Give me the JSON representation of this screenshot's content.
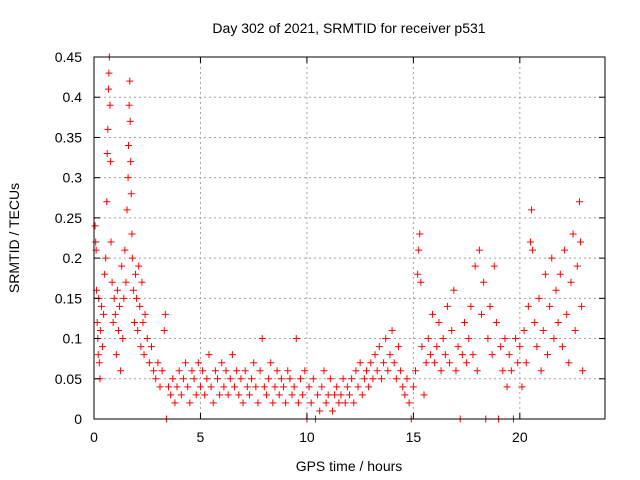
{
  "chart_data": {
    "type": "scatter",
    "title": "Day 302 of 2021, SRMTID for receiver p531",
    "xlabel": "GPS time / hours",
    "ylabel": "SRMTID / TECUs",
    "xlim": [
      0,
      24
    ],
    "ylim": [
      0,
      0.45
    ],
    "grid": true,
    "marker": "+",
    "color": "#ff0000",
    "x_ticks": [
      0,
      5,
      10,
      15,
      20
    ],
    "x_tick_labels": [
      "0",
      "5",
      "10",
      "15",
      "20"
    ],
    "y_ticks": [
      0,
      0.05,
      0.1,
      0.15,
      0.2,
      0.25,
      0.3,
      0.35,
      0.4,
      0.45
    ],
    "y_tick_labels": [
      "0",
      "0.05",
      "0.1",
      "0.15",
      "0.2",
      "0.25",
      "0.3",
      "0.35",
      "0.4",
      "0.45"
    ],
    "series": [
      {
        "name": "SRMTID",
        "points": [
          [
            0.05,
            0.24
          ],
          [
            0.08,
            0.22
          ],
          [
            0.1,
            0.21
          ],
          [
            0.12,
            0.16
          ],
          [
            0.15,
            0.12
          ],
          [
            0.18,
            0.1
          ],
          [
            0.2,
            0.08
          ],
          [
            0.22,
            0.15
          ],
          [
            0.25,
            0.07
          ],
          [
            0.28,
            0.05
          ],
          [
            0.3,
            0.11
          ],
          [
            0.35,
            0.14
          ],
          [
            0.4,
            0.09
          ],
          [
            0.45,
            0.13
          ],
          [
            0.5,
            0.18
          ],
          [
            0.55,
            0.2
          ],
          [
            0.6,
            0.27
          ],
          [
            0.62,
            0.33
          ],
          [
            0.65,
            0.36
          ],
          [
            0.68,
            0.41
          ],
          [
            0.7,
            0.43
          ],
          [
            0.72,
            0.45
          ],
          [
            0.75,
            0.39
          ],
          [
            0.78,
            0.32
          ],
          [
            0.8,
            0.22
          ],
          [
            0.85,
            0.17
          ],
          [
            0.9,
            0.12
          ],
          [
            0.95,
            0.15
          ],
          [
            1.0,
            0.13
          ],
          [
            1.05,
            0.08
          ],
          [
            1.1,
            0.16
          ],
          [
            1.15,
            0.11
          ],
          [
            1.2,
            0.14
          ],
          [
            1.25,
            0.06
          ],
          [
            1.3,
            0.19
          ],
          [
            1.35,
            0.1
          ],
          [
            1.4,
            0.15
          ],
          [
            1.45,
            0.21
          ],
          [
            1.5,
            0.17
          ],
          [
            1.55,
            0.26
          ],
          [
            1.6,
            0.3
          ],
          [
            1.62,
            0.34
          ],
          [
            1.65,
            0.39
          ],
          [
            1.68,
            0.42
          ],
          [
            1.7,
            0.37
          ],
          [
            1.72,
            0.32
          ],
          [
            1.75,
            0.28
          ],
          [
            1.78,
            0.23
          ],
          [
            1.8,
            0.2
          ],
          [
            1.85,
            0.16
          ],
          [
            1.9,
            0.12
          ],
          [
            1.95,
            0.18
          ],
          [
            2.0,
            0.15
          ],
          [
            2.05,
            0.11
          ],
          [
            2.1,
            0.19
          ],
          [
            2.15,
            0.14
          ],
          [
            2.2,
            0.09
          ],
          [
            2.25,
            0.17
          ],
          [
            2.3,
            0.12
          ],
          [
            2.35,
            0.08
          ],
          [
            2.4,
            0.13
          ],
          [
            2.5,
            0.1
          ],
          [
            2.6,
            0.07
          ],
          [
            2.7,
            0.09
          ],
          [
            2.8,
            0.06
          ],
          [
            2.9,
            0.05
          ],
          [
            3.0,
            0.07
          ],
          [
            3.1,
            0.04
          ],
          [
            3.2,
            0.06
          ],
          [
            3.3,
            0.11
          ],
          [
            3.35,
            0.13
          ],
          [
            3.4,
            0.0
          ],
          [
            3.5,
            0.04
          ],
          [
            3.6,
            0.03
          ],
          [
            3.7,
            0.05
          ],
          [
            3.8,
            0.02
          ],
          [
            3.9,
            0.04
          ],
          [
            4.0,
            0.06
          ],
          [
            4.1,
            0.03
          ],
          [
            4.2,
            0.05
          ],
          [
            4.3,
            0.07
          ],
          [
            4.4,
            0.04
          ],
          [
            4.5,
            0.02
          ],
          [
            4.6,
            0.06
          ],
          [
            4.7,
            0.05
          ],
          [
            4.8,
            0.03
          ],
          [
            4.9,
            0.07
          ],
          [
            5.0,
            0.04
          ],
          [
            5.1,
            0.06
          ],
          [
            5.2,
            0.03
          ],
          [
            5.3,
            0.05
          ],
          [
            5.4,
            0.08
          ],
          [
            5.5,
            0.04
          ],
          [
            5.6,
            0.02
          ],
          [
            5.7,
            0.06
          ],
          [
            5.8,
            0.05
          ],
          [
            5.9,
            0.03
          ],
          [
            6.0,
            0.07
          ],
          [
            6.1,
            0.04
          ],
          [
            6.2,
            0.06
          ],
          [
            6.3,
            0.03
          ],
          [
            6.4,
            0.05
          ],
          [
            6.5,
            0.08
          ],
          [
            6.6,
            0.04
          ],
          [
            6.7,
            0.06
          ],
          [
            6.8,
            0.03
          ],
          [
            6.9,
            0.05
          ],
          [
            7.0,
            0.02
          ],
          [
            7.1,
            0.06
          ],
          [
            7.2,
            0.04
          ],
          [
            7.3,
            0.03
          ],
          [
            7.4,
            0.05
          ],
          [
            7.5,
            0.07
          ],
          [
            7.6,
            0.04
          ],
          [
            7.7,
            0.02
          ],
          [
            7.8,
            0.06
          ],
          [
            7.9,
            0.1
          ],
          [
            8.0,
            0.04
          ],
          [
            8.1,
            0.03
          ],
          [
            8.2,
            0.05
          ],
          [
            8.3,
            0.07
          ],
          [
            8.4,
            0.02
          ],
          [
            8.5,
            0.04
          ],
          [
            8.6,
            0.06
          ],
          [
            8.7,
            0.03
          ],
          [
            8.8,
            0.05
          ],
          [
            8.9,
            0.04
          ],
          [
            9.0,
            0.02
          ],
          [
            9.1,
            0.06
          ],
          [
            9.2,
            0.05
          ],
          [
            9.3,
            0.03
          ],
          [
            9.4,
            0.04
          ],
          [
            9.5,
            0.1
          ],
          [
            9.6,
            0.02
          ],
          [
            9.7,
            0.05
          ],
          [
            9.8,
            0.03
          ],
          [
            9.9,
            0.06
          ],
          [
            10.0,
            0.0
          ],
          [
            10.1,
            0.04
          ],
          [
            10.2,
            0.02
          ],
          [
            10.3,
            0.05
          ],
          [
            10.4,
            0.0
          ],
          [
            10.5,
            0.03
          ],
          [
            10.6,
            0.01
          ],
          [
            10.7,
            0.04
          ],
          [
            10.8,
            0.06
          ],
          [
            10.9,
            0.02
          ],
          [
            11.0,
            0.03
          ],
          [
            11.1,
            0.05
          ],
          [
            11.2,
            0.01
          ],
          [
            11.3,
            0.03
          ],
          [
            11.4,
            0.04
          ],
          [
            11.5,
            0.02
          ],
          [
            11.6,
            0.03
          ],
          [
            11.7,
            0.05
          ],
          [
            11.8,
            0.02
          ],
          [
            11.9,
            0.04
          ],
          [
            12.0,
            0.03
          ],
          [
            12.1,
            0.05
          ],
          [
            12.2,
            0.02
          ],
          [
            12.3,
            0.06
          ],
          [
            12.4,
            0.04
          ],
          [
            12.5,
            0.07
          ],
          [
            12.6,
            0.03
          ],
          [
            12.7,
            0.05
          ],
          [
            12.8,
            0.06
          ],
          [
            12.9,
            0.04
          ],
          [
            13.0,
            0.07
          ],
          [
            13.1,
            0.05
          ],
          [
            13.2,
            0.08
          ],
          [
            13.3,
            0.06
          ],
          [
            13.4,
            0.09
          ],
          [
            13.5,
            0.05
          ],
          [
            13.6,
            0.07
          ],
          [
            13.7,
            0.1
          ],
          [
            13.8,
            0.06
          ],
          [
            13.9,
            0.08
          ],
          [
            14.0,
            0.11
          ],
          [
            14.1,
            0.07
          ],
          [
            14.2,
            0.05
          ],
          [
            14.3,
            0.09
          ],
          [
            14.4,
            0.06
          ],
          [
            14.5,
            0.04
          ],
          [
            14.6,
            0.03
          ],
          [
            14.7,
            0.05
          ],
          [
            14.8,
            0.02
          ],
          [
            14.9,
            0.0
          ],
          [
            15.0,
            0.04
          ],
          [
            15.1,
            0.06
          ],
          [
            15.2,
            0.18
          ],
          [
            15.25,
            0.21
          ],
          [
            15.3,
            0.23
          ],
          [
            15.35,
            0.17
          ],
          [
            15.4,
            0.09
          ],
          [
            15.5,
            0.03
          ],
          [
            15.6,
            0.07
          ],
          [
            15.7,
            0.1
          ],
          [
            15.8,
            0.08
          ],
          [
            15.9,
            0.13
          ],
          [
            16.0,
            0.07
          ],
          [
            16.1,
            0.09
          ],
          [
            16.2,
            0.12
          ],
          [
            16.3,
            0.06
          ],
          [
            16.4,
            0.1
          ],
          [
            16.5,
            0.08
          ],
          [
            16.6,
            0.14
          ],
          [
            16.7,
            0.07
          ],
          [
            16.8,
            0.11
          ],
          [
            16.9,
            0.16
          ],
          [
            17.0,
            0.06
          ],
          [
            17.1,
            0.09
          ],
          [
            17.2,
            0.0
          ],
          [
            17.3,
            0.08
          ],
          [
            17.4,
            0.12
          ],
          [
            17.5,
            0.07
          ],
          [
            17.6,
            0.1
          ],
          [
            17.7,
            0.14
          ],
          [
            17.8,
            0.08
          ],
          [
            17.9,
            0.19
          ],
          [
            18.0,
            0.06
          ],
          [
            18.1,
            0.21
          ],
          [
            18.2,
            0.13
          ],
          [
            18.3,
            0.17
          ],
          [
            18.4,
            0.0
          ],
          [
            18.5,
            0.1
          ],
          [
            18.6,
            0.14
          ],
          [
            18.7,
            0.08
          ],
          [
            18.8,
            0.19
          ],
          [
            18.9,
            0.12
          ],
          [
            19.0,
            0.0
          ],
          [
            19.1,
            0.09
          ],
          [
            19.2,
            0.06
          ],
          [
            19.3,
            0.1
          ],
          [
            19.4,
            0.04
          ],
          [
            19.5,
            0.08
          ],
          [
            19.6,
            0.06
          ],
          [
            19.7,
            0.0
          ],
          [
            19.8,
            0.1
          ],
          [
            19.9,
            0.07
          ],
          [
            20.0,
            0.09
          ],
          [
            20.1,
            0.04
          ],
          [
            20.2,
            0.11
          ],
          [
            20.3,
            0.07
          ],
          [
            20.4,
            0.14
          ],
          [
            20.5,
            0.22
          ],
          [
            20.55,
            0.26
          ],
          [
            20.6,
            0.21
          ],
          [
            20.7,
            0.12
          ],
          [
            20.8,
            0.09
          ],
          [
            20.9,
            0.15
          ],
          [
            21.0,
            0.06
          ],
          [
            21.1,
            0.11
          ],
          [
            21.2,
            0.18
          ],
          [
            21.3,
            0.08
          ],
          [
            21.4,
            0.14
          ],
          [
            21.5,
            0.2
          ],
          [
            21.6,
            0.1
          ],
          [
            21.7,
            0.16
          ],
          [
            21.8,
            0.12
          ],
          [
            21.9,
            0.18
          ],
          [
            22.0,
            0.09
          ],
          [
            22.1,
            0.21
          ],
          [
            22.2,
            0.13
          ],
          [
            22.3,
            0.07
          ],
          [
            22.4,
            0.17
          ],
          [
            22.5,
            0.23
          ],
          [
            22.6,
            0.11
          ],
          [
            22.7,
            0.19
          ],
          [
            22.8,
            0.27
          ],
          [
            22.85,
            0.22
          ],
          [
            22.9,
            0.14
          ],
          [
            22.95,
            0.06
          ]
        ]
      }
    ]
  }
}
